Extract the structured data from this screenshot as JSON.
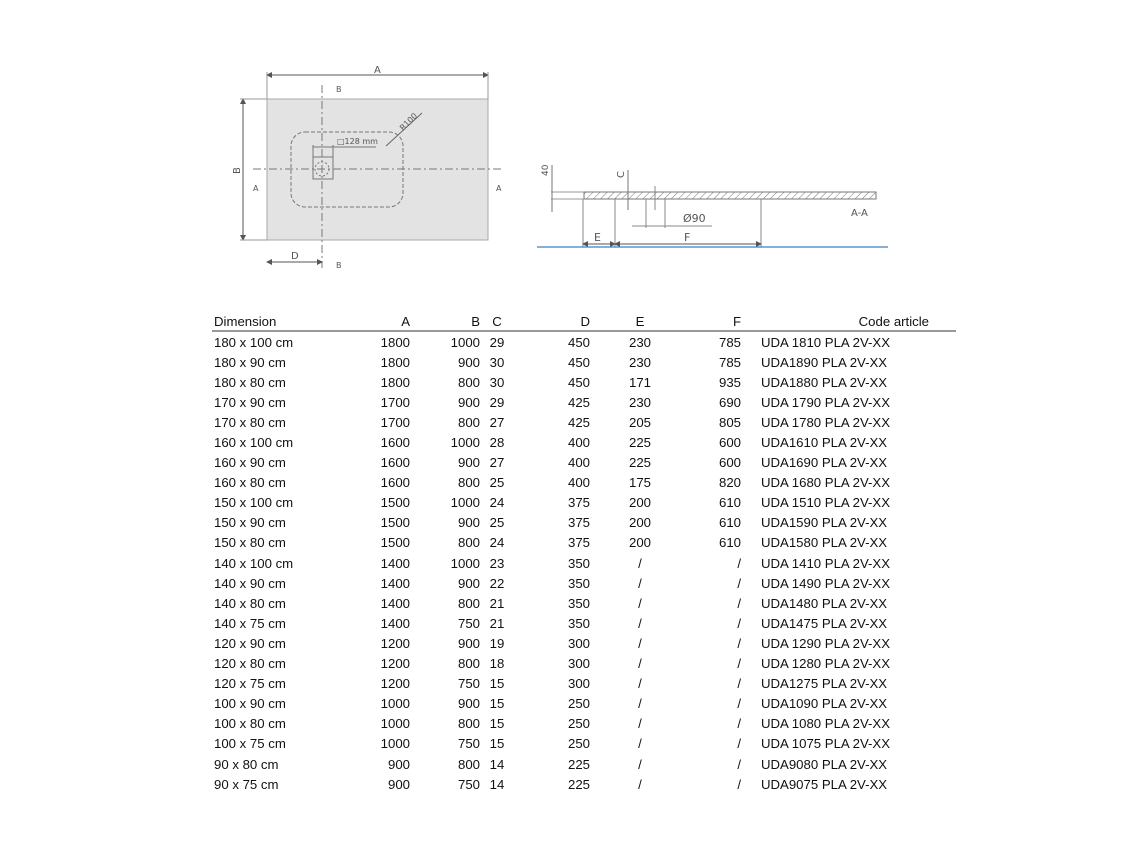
{
  "drawing": {
    "plan": {
      "label_a": "A",
      "label_b": "B",
      "label_d": "D",
      "radius": "R100",
      "drain_size": "□128 mm",
      "section_a": "A",
      "section_b": "B"
    },
    "section": {
      "title": "A-A",
      "height": "40",
      "label_c": "C",
      "label_e": "E",
      "label_f": "F",
      "drain_diameter": "Ø90"
    },
    "colors": {
      "tray_fill": "#e3e3e3",
      "floor_line": "#3b7fc4"
    }
  },
  "table": {
    "headers": [
      "Dimension",
      "A",
      "B",
      "C",
      "D",
      "E",
      "F",
      "Code article"
    ],
    "rows": [
      [
        "180 x 100 cm",
        "1800",
        "1000",
        "29",
        "450",
        "230",
        "785",
        "UDA 1810 PLA 2V-XX"
      ],
      [
        "180 x 90 cm",
        "1800",
        "900",
        "30",
        "450",
        "230",
        "785",
        "UDA1890 PLA 2V-XX"
      ],
      [
        "180 x 80 cm",
        "1800",
        "800",
        "30",
        "450",
        "171",
        "935",
        "UDA1880 PLA 2V-XX"
      ],
      [
        "170 x 90 cm",
        "1700",
        "900",
        "29",
        "425",
        "230",
        "690",
        "UDA 1790 PLA 2V-XX"
      ],
      [
        "170 x 80 cm",
        "1700",
        "800",
        "27",
        "425",
        "205",
        "805",
        "UDA 1780 PLA 2V-XX"
      ],
      [
        "160 x 100 cm",
        "1600",
        "1000",
        "28",
        "400",
        "225",
        "600",
        "UDA1610 PLA 2V-XX"
      ],
      [
        "160 x 90 cm",
        "1600",
        "900",
        "27",
        "400",
        "225",
        "600",
        "UDA1690 PLA 2V-XX"
      ],
      [
        "160 x 80 cm",
        "1600",
        "800",
        "25",
        "400",
        "175",
        "820",
        "UDA 1680 PLA 2V-XX"
      ],
      [
        "150 x 100 cm",
        "1500",
        "1000",
        "24",
        "375",
        "200",
        "610",
        "UDA 1510 PLA 2V-XX"
      ],
      [
        "150 x 90 cm",
        "1500",
        "900",
        "25",
        "375",
        "200",
        "610",
        "UDA1590 PLA 2V-XX"
      ],
      [
        "150 x 80 cm",
        "1500",
        "800",
        "24",
        "375",
        "200",
        "610",
        "UDA1580 PLA 2V-XX"
      ],
      [
        "140 x 100 cm",
        "1400",
        "1000",
        "23",
        "350",
        "/",
        "/",
        "UDA 1410 PLA 2V-XX"
      ],
      [
        "140 x 90 cm",
        "1400",
        "900",
        "22",
        "350",
        "/",
        "/",
        "UDA 1490 PLA 2V-XX"
      ],
      [
        "140 x 80 cm",
        "1400",
        "800",
        "21",
        "350",
        "/",
        "/",
        "UDA1480 PLA 2V-XX"
      ],
      [
        "140 x 75 cm",
        "1400",
        "750",
        "21",
        "350",
        "/",
        "/",
        "UDA1475 PLA 2V-XX"
      ],
      [
        "120 x 90 cm",
        "1200",
        "900",
        "19",
        "300",
        "/",
        "/",
        "UDA 1290 PLA 2V-XX"
      ],
      [
        "120 x 80 cm",
        "1200",
        "800",
        "18",
        "300",
        "/",
        "/",
        "UDA 1280 PLA 2V-XX"
      ],
      [
        "120 x 75 cm",
        "1200",
        "750",
        "15",
        "300",
        "/",
        "/",
        "UDA1275 PLA 2V-XX"
      ],
      [
        "100 x 90 cm",
        "1000",
        "900",
        "15",
        "250",
        "/",
        "/",
        "UDA1090 PLA 2V-XX"
      ],
      [
        "100 x 80 cm",
        "1000",
        "800",
        "15",
        "250",
        "/",
        "/",
        "UDA 1080 PLA 2V-XX"
      ],
      [
        "100 x 75 cm",
        "1000",
        "750",
        "15",
        "250",
        "/",
        "/",
        "UDA 1075 PLA 2V-XX"
      ],
      [
        "90 x 80 cm",
        "900",
        "800",
        "14",
        "225",
        "/",
        "/",
        "UDA9080 PLA 2V-XX"
      ],
      [
        "90 x 75 cm",
        "900",
        "750",
        "14",
        "225",
        "/",
        "/",
        "UDA9075 PLA 2V-XX"
      ]
    ]
  }
}
